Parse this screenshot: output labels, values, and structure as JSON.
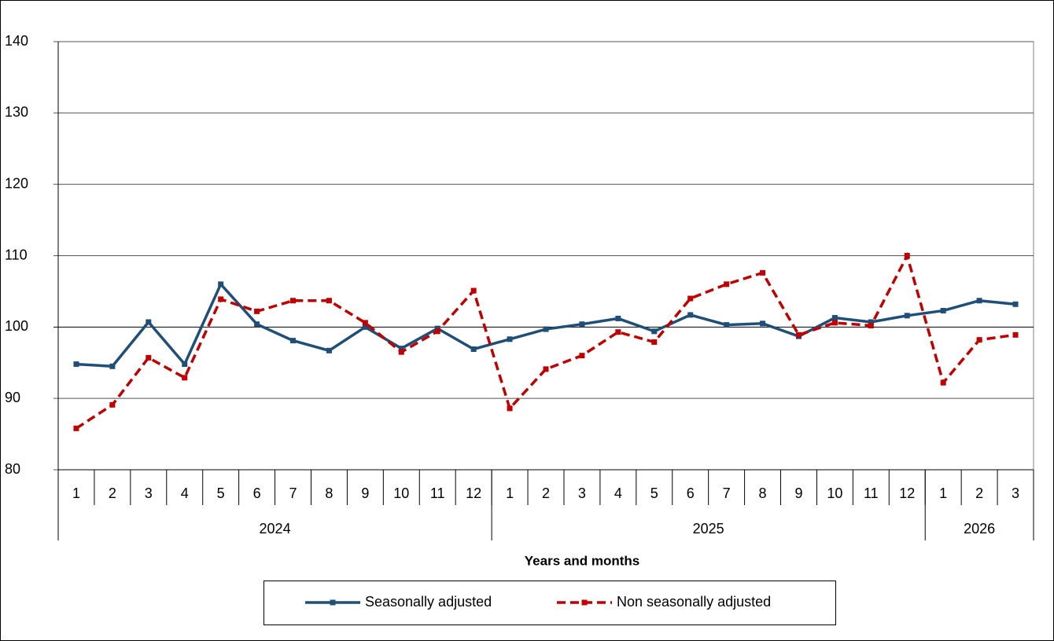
{
  "chart_data": {
    "type": "line",
    "x_label": "Years and months",
    "categories": [
      "1",
      "2",
      "3",
      "4",
      "5",
      "6",
      "7",
      "8",
      "9",
      "10",
      "11",
      "12",
      "1",
      "2",
      "3",
      "4",
      "5",
      "6",
      "7",
      "8",
      "9",
      "10",
      "11",
      "12",
      "1",
      "2",
      "3"
    ],
    "x_groups": [
      {
        "label": "2024",
        "count": 12
      },
      {
        "label": "2025",
        "count": 12
      },
      {
        "label": "2026",
        "count": 3
      }
    ],
    "series": [
      {
        "name": "Seasonally adjusted",
        "color": "#1f4e79",
        "dashed": false,
        "values": [
          94.8,
          94.5,
          100.7,
          94.8,
          106.0,
          100.4,
          98.1,
          96.7,
          100.0,
          97.0,
          99.8,
          96.9,
          98.3,
          99.7,
          100.4,
          101.2,
          99.4,
          101.7,
          100.3,
          100.5,
          98.7,
          101.3,
          100.7,
          101.6,
          102.3,
          103.7,
          103.2
        ]
      },
      {
        "name": "Non seasonally adjusted",
        "color": "#c00000",
        "dashed": true,
        "values": [
          85.8,
          89.1,
          95.7,
          92.9,
          103.9,
          102.2,
          103.7,
          103.7,
          100.6,
          96.5,
          99.4,
          105.1,
          88.6,
          94.1,
          96.0,
          99.3,
          97.9,
          104.0,
          106.0,
          107.6,
          98.9,
          100.6,
          100.2,
          110.0,
          92.2,
          98.2,
          98.9
        ]
      }
    ],
    "ylim": [
      80,
      140
    ],
    "yticks": [
      80,
      90,
      100,
      110,
      120,
      130,
      140
    ],
    "grid": true,
    "legend": "bottom"
  }
}
